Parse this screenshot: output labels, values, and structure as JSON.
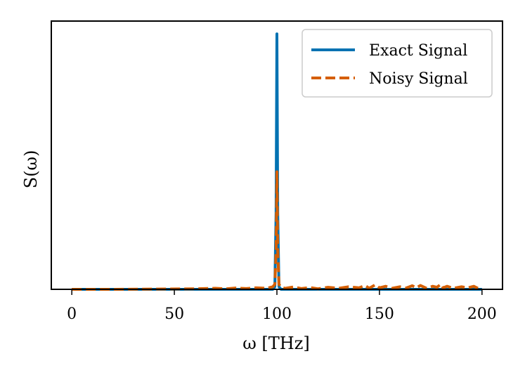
{
  "chart_data": {
    "type": "line",
    "xlabel": "ω [THz]",
    "ylabel": "S(ω)",
    "xlim": [
      -10,
      210
    ],
    "ylim": [
      0,
      1.05
    ],
    "xticks": [
      0,
      50,
      100,
      150,
      200
    ],
    "xtick_labels": [
      "0",
      "50",
      "100",
      "150",
      "200"
    ],
    "yticks_shown": false,
    "grid": false,
    "legend_position": "top-right",
    "series": [
      {
        "name": "Exact Signal",
        "style": "solid",
        "color": "#0072B2",
        "x": [
          0,
          98,
          99,
          99.6,
          100,
          100.4,
          101,
          102,
          200
        ],
        "y": [
          0,
          0,
          0.01,
          0.3,
          1.0,
          0.3,
          0.01,
          0,
          0
        ]
      },
      {
        "name": "Noisy Signal",
        "style": "dashed",
        "color": "#D55E00",
        "x": [
          0,
          20,
          40,
          60,
          70,
          75,
          80,
          85,
          90,
          95,
          98,
          99,
          99.6,
          100,
          100.4,
          101,
          102,
          104,
          108,
          112,
          116,
          120,
          125,
          130,
          135,
          140,
          143,
          145,
          148,
          150,
          153,
          156,
          160,
          163,
          166,
          168,
          170,
          173,
          176,
          178,
          180,
          181,
          183,
          186,
          190,
          193,
          196,
          198,
          200
        ],
        "y": [
          0,
          0,
          0.001,
          0.002,
          0.004,
          0.002,
          0.005,
          0.003,
          0.006,
          0.004,
          0.01,
          0.02,
          0.15,
          0.46,
          0.15,
          0.02,
          0.008,
          0.004,
          0.009,
          0.003,
          0.007,
          0.002,
          0.008,
          0.004,
          0.01,
          0.006,
          0.015,
          0.004,
          0.018,
          0.006,
          0.012,
          0.004,
          0.01,
          0.005,
          0.014,
          0.006,
          0.015,
          0.004,
          0.012,
          0.008,
          0.02,
          0.006,
          0.012,
          0.004,
          0.01,
          0.006,
          0.012,
          0.004,
          0.008
        ]
      }
    ]
  }
}
